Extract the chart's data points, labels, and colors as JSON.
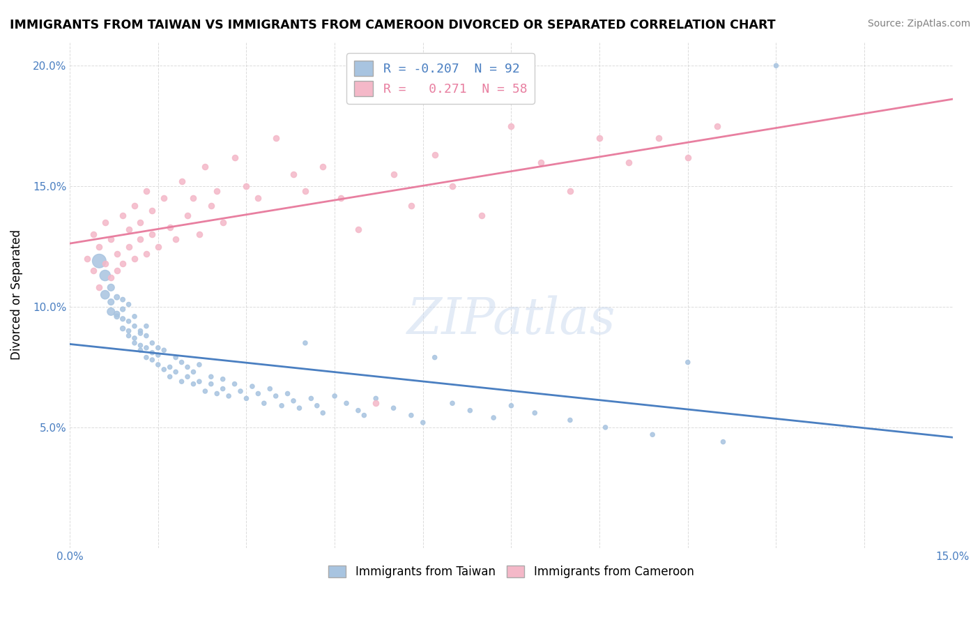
{
  "title": "IMMIGRANTS FROM TAIWAN VS IMMIGRANTS FROM CAMEROON DIVORCED OR SEPARATED CORRELATION CHART",
  "source": "Source: ZipAtlas.com",
  "ylabel": "Divorced or Separated",
  "xlabel": "",
  "xlim": [
    0.0,
    0.15
  ],
  "ylim": [
    0.0,
    0.21
  ],
  "x_ticks": [
    0.0,
    0.015,
    0.03,
    0.045,
    0.06,
    0.075,
    0.09,
    0.105,
    0.12,
    0.135,
    0.15
  ],
  "y_ticks": [
    0.0,
    0.05,
    0.1,
    0.15,
    0.2
  ],
  "y_tick_labels": [
    "",
    "5.0%",
    "10.0%",
    "15.0%",
    "20.0%"
  ],
  "x_tick_labels": [
    "0.0%",
    "",
    "",
    "",
    "",
    "",
    "",
    "",
    "",
    "",
    "15.0%"
  ],
  "taiwan_R": -0.207,
  "taiwan_N": 92,
  "cameroon_R": 0.271,
  "cameroon_N": 58,
  "taiwan_color": "#a8c4e0",
  "cameroon_color": "#f4b8c8",
  "taiwan_line_color": "#4a7fc1",
  "cameroon_line_color": "#e87fa0",
  "watermark": "ZIPatlas",
  "taiwan_scatter": [
    [
      0.005,
      0.119
    ],
    [
      0.006,
      0.113
    ],
    [
      0.006,
      0.105
    ],
    [
      0.007,
      0.098
    ],
    [
      0.007,
      0.108
    ],
    [
      0.007,
      0.102
    ],
    [
      0.008,
      0.097
    ],
    [
      0.008,
      0.104
    ],
    [
      0.008,
      0.096
    ],
    [
      0.009,
      0.091
    ],
    [
      0.009,
      0.099
    ],
    [
      0.009,
      0.095
    ],
    [
      0.009,
      0.103
    ],
    [
      0.01,
      0.09
    ],
    [
      0.01,
      0.094
    ],
    [
      0.01,
      0.101
    ],
    [
      0.01,
      0.088
    ],
    [
      0.011,
      0.087
    ],
    [
      0.011,
      0.092
    ],
    [
      0.011,
      0.096
    ],
    [
      0.011,
      0.085
    ],
    [
      0.012,
      0.084
    ],
    [
      0.012,
      0.09
    ],
    [
      0.012,
      0.089
    ],
    [
      0.012,
      0.082
    ],
    [
      0.013,
      0.083
    ],
    [
      0.013,
      0.088
    ],
    [
      0.013,
      0.079
    ],
    [
      0.013,
      0.092
    ],
    [
      0.014,
      0.078
    ],
    [
      0.014,
      0.085
    ],
    [
      0.014,
      0.081
    ],
    [
      0.015,
      0.076
    ],
    [
      0.015,
      0.083
    ],
    [
      0.015,
      0.08
    ],
    [
      0.016,
      0.074
    ],
    [
      0.016,
      0.082
    ],
    [
      0.017,
      0.075
    ],
    [
      0.017,
      0.071
    ],
    [
      0.018,
      0.079
    ],
    [
      0.018,
      0.073
    ],
    [
      0.019,
      0.077
    ],
    [
      0.019,
      0.069
    ],
    [
      0.02,
      0.075
    ],
    [
      0.02,
      0.071
    ],
    [
      0.021,
      0.068
    ],
    [
      0.021,
      0.073
    ],
    [
      0.022,
      0.069
    ],
    [
      0.022,
      0.076
    ],
    [
      0.023,
      0.065
    ],
    [
      0.024,
      0.071
    ],
    [
      0.024,
      0.068
    ],
    [
      0.025,
      0.064
    ],
    [
      0.026,
      0.07
    ],
    [
      0.026,
      0.066
    ],
    [
      0.027,
      0.063
    ],
    [
      0.028,
      0.068
    ],
    [
      0.029,
      0.065
    ],
    [
      0.03,
      0.062
    ],
    [
      0.031,
      0.067
    ],
    [
      0.032,
      0.064
    ],
    [
      0.033,
      0.06
    ],
    [
      0.034,
      0.066
    ],
    [
      0.035,
      0.063
    ],
    [
      0.036,
      0.059
    ],
    [
      0.037,
      0.064
    ],
    [
      0.038,
      0.061
    ],
    [
      0.039,
      0.058
    ],
    [
      0.04,
      0.085
    ],
    [
      0.041,
      0.062
    ],
    [
      0.042,
      0.059
    ],
    [
      0.043,
      0.056
    ],
    [
      0.045,
      0.063
    ],
    [
      0.047,
      0.06
    ],
    [
      0.049,
      0.057
    ],
    [
      0.05,
      0.055
    ],
    [
      0.052,
      0.062
    ],
    [
      0.055,
      0.058
    ],
    [
      0.058,
      0.055
    ],
    [
      0.06,
      0.052
    ],
    [
      0.062,
      0.079
    ],
    [
      0.065,
      0.06
    ],
    [
      0.068,
      0.057
    ],
    [
      0.072,
      0.054
    ],
    [
      0.075,
      0.059
    ],
    [
      0.079,
      0.056
    ],
    [
      0.085,
      0.053
    ],
    [
      0.091,
      0.05
    ],
    [
      0.099,
      0.047
    ],
    [
      0.105,
      0.077
    ],
    [
      0.111,
      0.044
    ],
    [
      0.12,
      0.2
    ]
  ],
  "cameroon_scatter": [
    [
      0.003,
      0.12
    ],
    [
      0.004,
      0.115
    ],
    [
      0.004,
      0.13
    ],
    [
      0.005,
      0.108
    ],
    [
      0.005,
      0.125
    ],
    [
      0.006,
      0.118
    ],
    [
      0.006,
      0.135
    ],
    [
      0.007,
      0.112
    ],
    [
      0.007,
      0.128
    ],
    [
      0.008,
      0.122
    ],
    [
      0.008,
      0.115
    ],
    [
      0.009,
      0.138
    ],
    [
      0.009,
      0.118
    ],
    [
      0.01,
      0.132
    ],
    [
      0.01,
      0.125
    ],
    [
      0.011,
      0.12
    ],
    [
      0.011,
      0.142
    ],
    [
      0.012,
      0.128
    ],
    [
      0.012,
      0.135
    ],
    [
      0.013,
      0.122
    ],
    [
      0.013,
      0.148
    ],
    [
      0.014,
      0.13
    ],
    [
      0.014,
      0.14
    ],
    [
      0.015,
      0.125
    ],
    [
      0.016,
      0.145
    ],
    [
      0.017,
      0.133
    ],
    [
      0.018,
      0.128
    ],
    [
      0.019,
      0.152
    ],
    [
      0.02,
      0.138
    ],
    [
      0.021,
      0.145
    ],
    [
      0.022,
      0.13
    ],
    [
      0.023,
      0.158
    ],
    [
      0.024,
      0.142
    ],
    [
      0.025,
      0.148
    ],
    [
      0.026,
      0.135
    ],
    [
      0.028,
      0.162
    ],
    [
      0.03,
      0.15
    ],
    [
      0.032,
      0.145
    ],
    [
      0.035,
      0.17
    ],
    [
      0.038,
      0.155
    ],
    [
      0.04,
      0.148
    ],
    [
      0.043,
      0.158
    ],
    [
      0.046,
      0.145
    ],
    [
      0.049,
      0.132
    ],
    [
      0.052,
      0.06
    ],
    [
      0.055,
      0.155
    ],
    [
      0.058,
      0.142
    ],
    [
      0.062,
      0.163
    ],
    [
      0.065,
      0.15
    ],
    [
      0.07,
      0.138
    ],
    [
      0.075,
      0.175
    ],
    [
      0.08,
      0.16
    ],
    [
      0.085,
      0.148
    ],
    [
      0.09,
      0.17
    ],
    [
      0.095,
      0.16
    ],
    [
      0.1,
      0.17
    ],
    [
      0.105,
      0.162
    ],
    [
      0.11,
      0.175
    ]
  ],
  "taiwan_sizes": [
    200,
    120,
    80,
    60,
    50,
    40,
    35,
    30,
    28,
    26,
    25,
    24,
    22,
    21,
    20,
    20,
    20,
    20,
    20,
    20,
    20,
    20,
    20,
    20,
    20,
    20,
    20,
    20,
    20,
    20,
    20,
    20,
    20,
    20,
    20,
    20,
    20,
    20,
    20,
    20,
    20,
    20,
    20,
    20,
    20,
    20,
    20,
    20,
    20,
    20,
    20,
    20,
    20,
    20,
    20,
    20,
    20,
    20,
    20,
    20,
    20,
    20,
    20,
    20,
    20,
    20,
    20,
    20,
    20,
    20,
    20,
    20,
    20,
    20,
    20,
    20,
    20,
    20,
    20,
    20,
    20,
    20,
    20,
    20,
    20,
    20,
    20,
    20,
    20,
    20,
    20,
    20
  ]
}
